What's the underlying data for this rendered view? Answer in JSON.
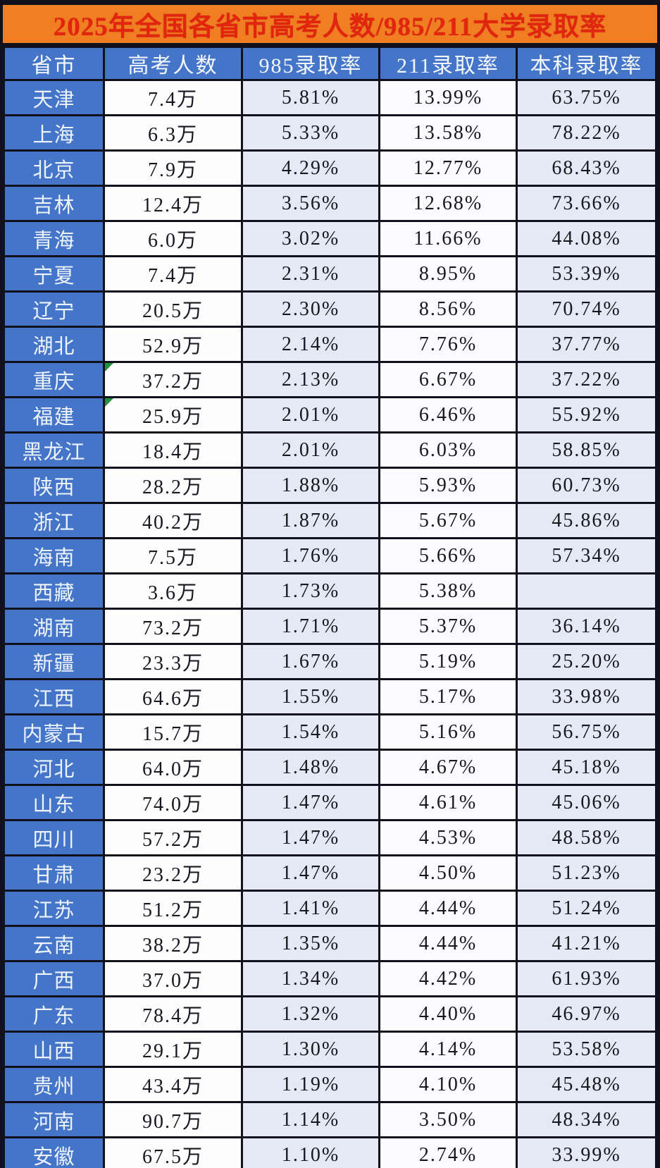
{
  "title": "2025年全国各省市高考人数/985/211大学录取率",
  "colors": {
    "title_bg": "#ef7f22",
    "title_text": "#e1250f",
    "header_bg": "#4575c8",
    "header_text": "#f4f8ff",
    "province_bg": "#4575c8",
    "row_white": "#fdfdfe",
    "row_tint": "#e5e9f6",
    "grid_border": "#10111c",
    "error_marker_green": "#23913d",
    "cell_text": "#17181f"
  },
  "chart_data": {
    "type": "table",
    "title": "2025年全国各省市高考人数/985/211大学录取率",
    "columns": [
      "省市",
      "高考人数",
      "985录取率",
      "211录取率",
      "本科录取率"
    ],
    "rows": [
      [
        "天津",
        "7.4万",
        "5.81%",
        "13.99%",
        "63.75%"
      ],
      [
        "上海",
        "6.3万",
        "5.33%",
        "13.58%",
        "78.22%"
      ],
      [
        "北京",
        "7.9万",
        "4.29%",
        "12.77%",
        "68.43%"
      ],
      [
        "吉林",
        "12.4万",
        "3.56%",
        "12.68%",
        "73.66%"
      ],
      [
        "青海",
        "6.0万",
        "3.02%",
        "11.66%",
        "44.08%"
      ],
      [
        "宁夏",
        "7.4万",
        "2.31%",
        "8.95%",
        "53.39%"
      ],
      [
        "辽宁",
        "20.5万",
        "2.30%",
        "8.56%",
        "70.74%"
      ],
      [
        "湖北",
        "52.9万",
        "2.14%",
        "7.76%",
        "37.77%"
      ],
      [
        "重庆",
        "37.2万",
        "2.13%",
        "6.67%",
        "37.22%"
      ],
      [
        "福建",
        "25.9万",
        "2.01%",
        "6.46%",
        "55.92%"
      ],
      [
        "黑龙江",
        "18.4万",
        "2.01%",
        "6.03%",
        "58.85%"
      ],
      [
        "陕西",
        "28.2万",
        "1.88%",
        "5.93%",
        "60.73%"
      ],
      [
        "浙江",
        "40.2万",
        "1.87%",
        "5.67%",
        "45.86%"
      ],
      [
        "海南",
        "7.5万",
        "1.76%",
        "5.66%",
        "57.34%"
      ],
      [
        "西藏",
        "3.6万",
        "1.73%",
        "5.38%",
        ""
      ],
      [
        "湖南",
        "73.2万",
        "1.71%",
        "5.37%",
        "36.14%"
      ],
      [
        "新疆",
        "23.3万",
        "1.67%",
        "5.19%",
        "25.20%"
      ],
      [
        "江西",
        "64.6万",
        "1.55%",
        "5.17%",
        "33.98%"
      ],
      [
        "内蒙古",
        "15.7万",
        "1.54%",
        "5.16%",
        "56.75%"
      ],
      [
        "河北",
        "64.0万",
        "1.48%",
        "4.67%",
        "45.18%"
      ],
      [
        "山东",
        "74.0万",
        "1.47%",
        "4.61%",
        "45.06%"
      ],
      [
        "四川",
        "57.2万",
        "1.47%",
        "4.53%",
        "48.58%"
      ],
      [
        "甘肃",
        "23.2万",
        "1.47%",
        "4.50%",
        "51.23%"
      ],
      [
        "江苏",
        "51.2万",
        "1.41%",
        "4.44%",
        "51.24%"
      ],
      [
        "云南",
        "38.2万",
        "1.35%",
        "4.44%",
        "41.21%"
      ],
      [
        "广西",
        "37.0万",
        "1.34%",
        "4.42%",
        "61.93%"
      ],
      [
        "广东",
        "78.4万",
        "1.32%",
        "4.40%",
        "46.97%"
      ],
      [
        "山西",
        "29.1万",
        "1.30%",
        "4.14%",
        "53.58%"
      ],
      [
        "贵州",
        "43.4万",
        "1.19%",
        "4.10%",
        "45.48%"
      ],
      [
        "河南",
        "90.7万",
        "1.14%",
        "3.50%",
        "48.34%"
      ],
      [
        "安徽",
        "67.5万",
        "1.10%",
        "2.74%",
        "33.99%"
      ]
    ],
    "error_marker_rows": [
      "重庆",
      "福建"
    ],
    "layout": {
      "grid": true,
      "header_position": "top",
      "first_column_role": "row-header"
    }
  }
}
